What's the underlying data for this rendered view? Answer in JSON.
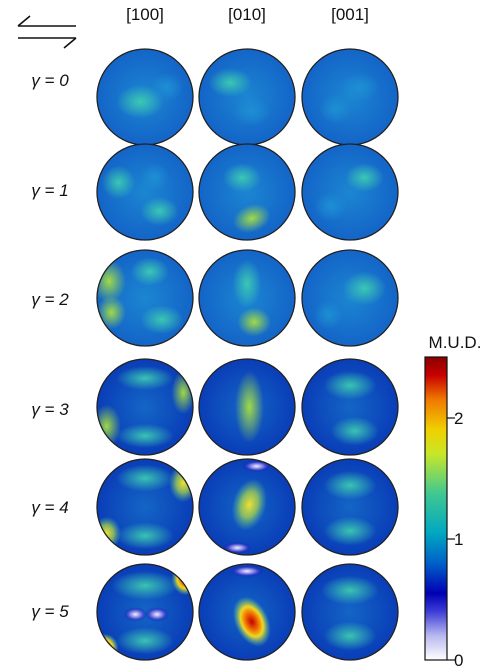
{
  "columns": [
    "[100]",
    "[010]",
    "[001]"
  ],
  "rows": [
    {
      "label": "γ = 0"
    },
    {
      "label": "γ = 1"
    },
    {
      "label": "γ = 2"
    },
    {
      "label": "γ = 3"
    },
    {
      "label": "γ = 4"
    },
    {
      "label": "γ = 5"
    }
  ],
  "colorbar": {
    "title": "M.U.D.",
    "ticks": [
      "2",
      "1",
      "0"
    ],
    "range": [
      0,
      2.5
    ],
    "tick_values": [
      2,
      1,
      0
    ],
    "stops": [
      "#ffffff",
      "#b8b8f0",
      "#3d3dd6",
      "#0000b4",
      "#0060c8",
      "#00a8c0",
      "#40c890",
      "#c8e628",
      "#f0d000",
      "#f07800",
      "#c80000",
      "#8a0000"
    ]
  },
  "shear_sense_icon": "shear-arrows-icon",
  "colors": {
    "outline": "#222222",
    "background": "#0b4fc2",
    "medium": "#1e8fd0",
    "high": "#38c0a8"
  }
}
